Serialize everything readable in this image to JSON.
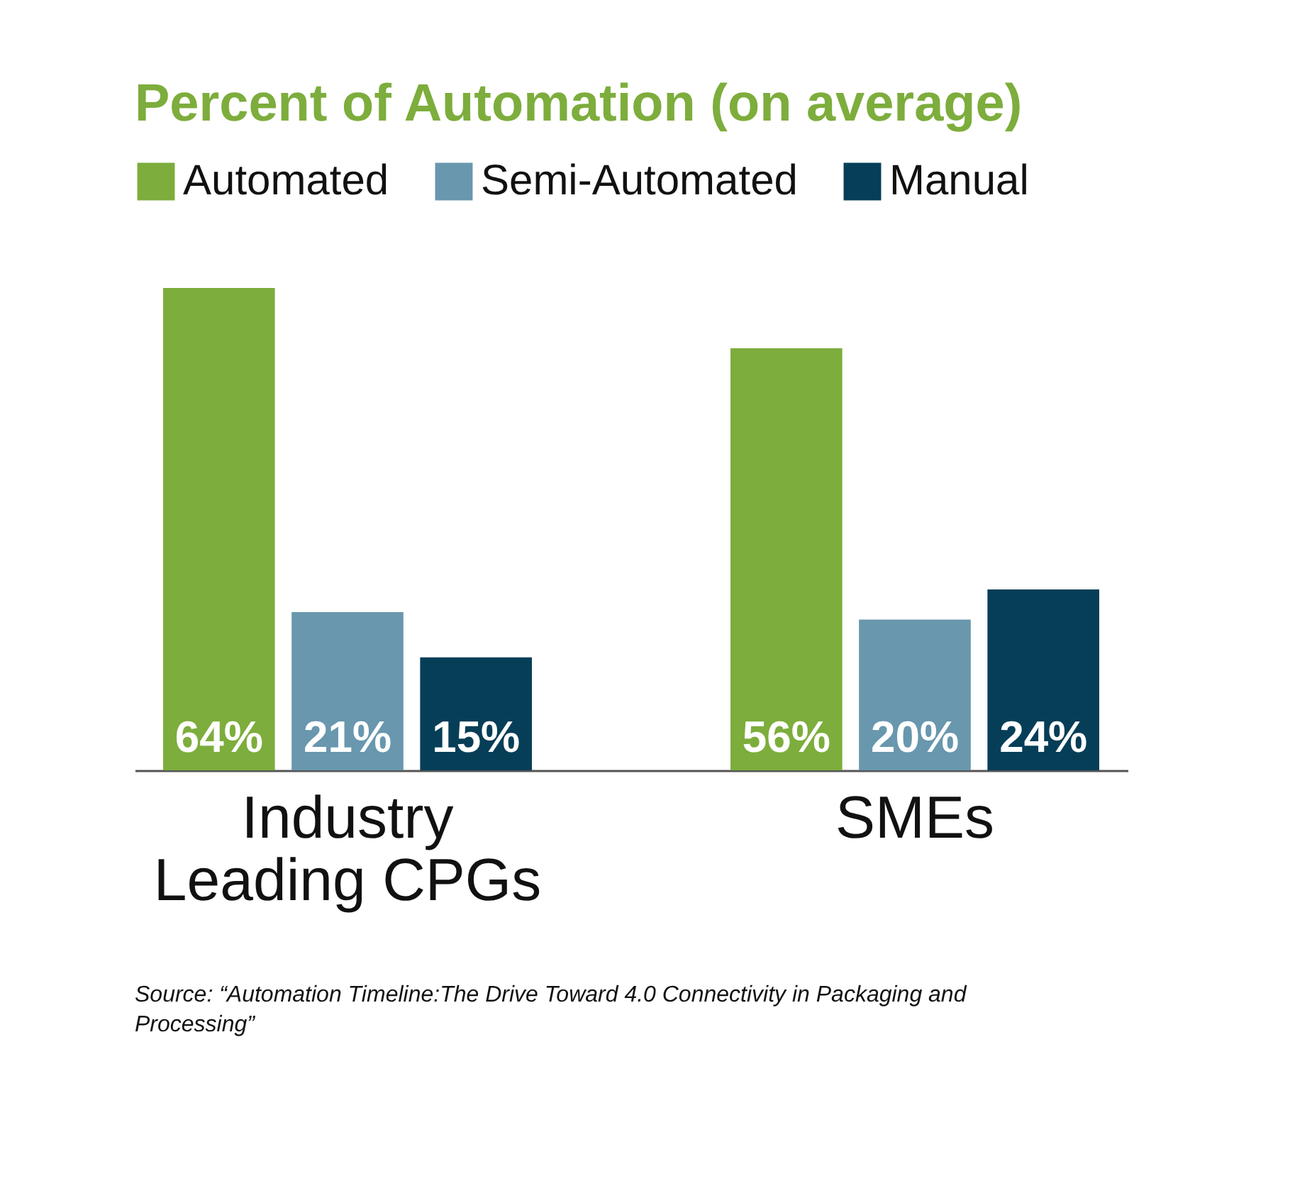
{
  "chart_data": {
    "type": "bar",
    "title": "Percent of Automation (on average)",
    "categories": [
      "Industry Leading CPGs",
      "SMEs"
    ],
    "series": [
      {
        "name": "Automated",
        "color": "#7dad3c",
        "values": [
          64,
          56
        ],
        "value_labels": [
          "64%",
          "56%"
        ]
      },
      {
        "name": "Semi-Automated",
        "color": "#6897ae",
        "values": [
          21,
          20
        ],
        "value_labels": [
          "21%",
          "20%"
        ]
      },
      {
        "name": "Manual",
        "color": "#063e58",
        "values": [
          15,
          24
        ],
        "value_labels": [
          "15%",
          "24%"
        ]
      }
    ],
    "grid": false,
    "legend": "top",
    "annotations": [
      "Source: “Automation Timeline:The Drive Toward 4.0 Connectivity in Packaging and Processing”"
    ]
  }
}
